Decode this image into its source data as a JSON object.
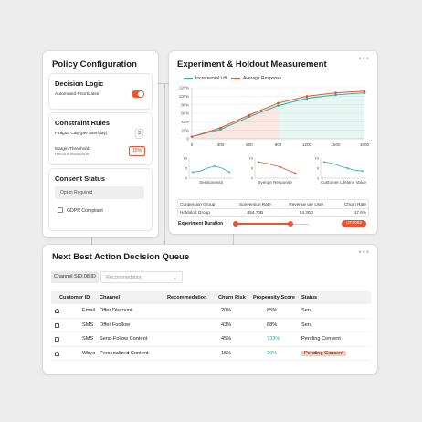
{
  "policy": {
    "title": "Policy Configuration",
    "decision_logic": {
      "title": "Decision Logic",
      "auto_label": "Automated Priortization",
      "toggle_on": true
    },
    "constraint_rules": {
      "title": "Constraint Rules",
      "fatigue_label": "Fatigue Cap (per user/day):",
      "fatigue_value": "3",
      "margin_label": "Margin Threshold:",
      "margin_sub": "Recommedations",
      "margin_value": "15%"
    },
    "consent": {
      "title": "Consent Status",
      "option": "Opt-in Required",
      "gdpr_label": "GDPR Compliant"
    }
  },
  "experiment": {
    "title": "Experiment & Holdout Measurement",
    "colors": {
      "teal": "#2bb3a0",
      "orange": "#e8552f"
    },
    "chart_data": {
      "type": "line",
      "x": [
        0,
        300,
        600,
        900,
        1200,
        1500,
        1800
      ],
      "x_tick_labels": [
        "0",
        "300",
        "600",
        "900",
        "1200",
        "1500",
        "1800"
      ],
      "y_tick_labels": [
        "0",
        "20%",
        "40%",
        "60%",
        "80%",
        "100%",
        "120%"
      ],
      "ylim": [
        0,
        120
      ],
      "series": [
        {
          "name": "Incremental Lift",
          "values": [
            5,
            22,
            52,
            78,
            95,
            103,
            108
          ]
        },
        {
          "name": "Average Response",
          "values": [
            5,
            26,
            56,
            84,
            100,
            108,
            112
          ]
        }
      ],
      "legend": "top"
    },
    "mini_charts": [
      {
        "caption": "Sessionessit",
        "y_ticks": [
          "10",
          "5",
          "0"
        ],
        "values": [
          3,
          3.5,
          5,
          6,
          5,
          3
        ]
      },
      {
        "caption": "Svenge Response",
        "y_ticks": [
          "10",
          "8",
          "0"
        ],
        "values": [
          8,
          7.5,
          6.5,
          5.5,
          4,
          2.5
        ]
      },
      {
        "caption": "Customer Lifetime Value",
        "y_ticks": [
          "10",
          "8",
          "0"
        ],
        "values": [
          8,
          7.5,
          6,
          5,
          4,
          3.5
        ]
      }
    ],
    "table": {
      "headers": [
        "Conpersion Group",
        "Sonversion Rate",
        "Revenue per User",
        "Churn Rate"
      ],
      "rows": [
        [
          "Holdolod Group",
          "$54.70B",
          "$4.30D",
          "17.6%"
        ]
      ]
    },
    "duration_label": "Experiment Duration",
    "duration_progress": 0.75,
    "duration_badge": "UF4052"
  },
  "queue": {
    "title": "Next Best Action Decision Queue",
    "channel_chip": "Channel SID:08 ID",
    "dropdown_placeholder": "Recommedation",
    "headers": [
      "Customer ID",
      "Channel",
      "Recommedation",
      "Churn Risk",
      "Propensity Score",
      "Status"
    ],
    "rows": [
      {
        "icon": "bell-icon",
        "channel": "Email",
        "recommendation": "Offer Discount",
        "churn": "20%",
        "propensity": "85%",
        "status": "Sent",
        "highlight": false
      },
      {
        "icon": "mail-icon",
        "channel": "SMS",
        "recommendation": "Offer Foollow",
        "churn": "43%",
        "propensity": "88%",
        "status": "Sent",
        "highlight": false
      },
      {
        "icon": "chat-icon",
        "channel": "SMS",
        "recommendation": "Send-Follow Content",
        "churn": "45%",
        "propensity": "733%",
        "status": "Pending Consent",
        "highlight": false
      },
      {
        "icon": "bell-icon",
        "channel": "Wbyo",
        "recommendation": "Personalized Content",
        "churn": "15%",
        "propensity": "30%",
        "status": "Pending Consent",
        "highlight": true
      }
    ]
  }
}
